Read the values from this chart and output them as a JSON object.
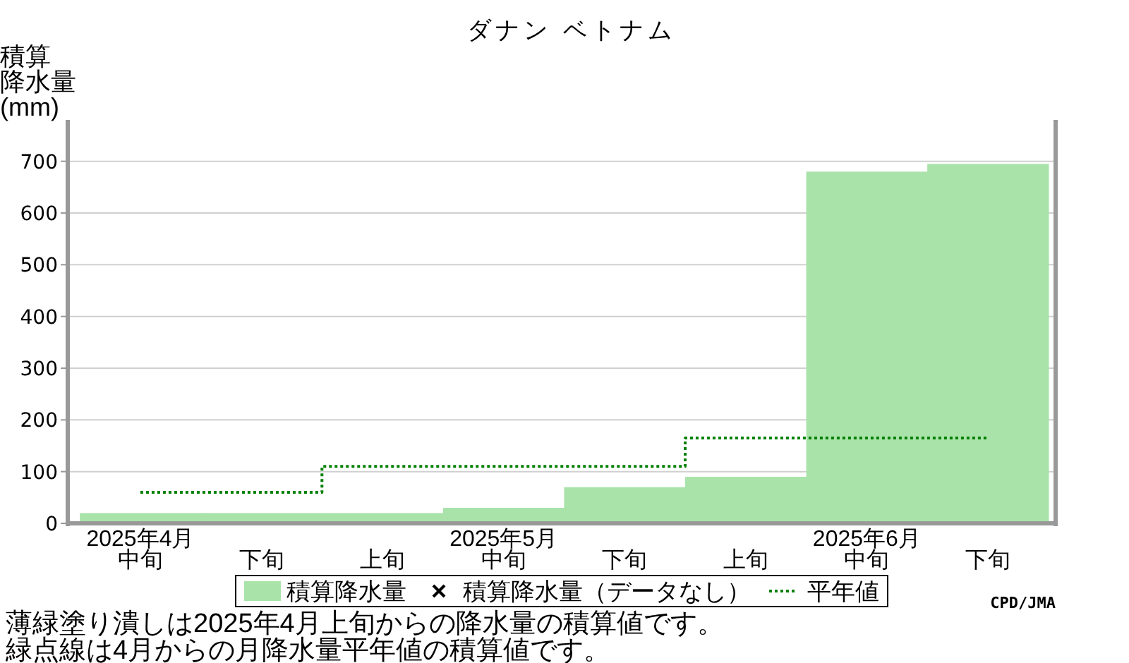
{
  "chart_data": {
    "type": "bar",
    "title": "ダナン ベトナム",
    "ylabel": "積算降水量(mm)",
    "categories": [
      "2025年4月中旬",
      "下旬",
      "上旬",
      "2025年5月中旬",
      "下旬",
      "上旬",
      "2025年6月中旬",
      "下旬"
    ],
    "series": [
      {
        "name": "積算降水量",
        "color": "#aae3aa",
        "values": [
          20,
          20,
          20,
          30,
          70,
          90,
          680,
          695
        ]
      },
      {
        "name": "積算降水量（データなし）",
        "type": "scatter",
        "marker": "cross",
        "color": "#000000",
        "values": [
          null,
          null,
          null,
          null,
          null,
          null,
          null,
          null
        ]
      },
      {
        "name": "平年値",
        "type": "step",
        "line_style": "dotted",
        "color": "#008000",
        "values": [
          60,
          60,
          110,
          110,
          110,
          165,
          165,
          165
        ]
      }
    ],
    "ylim": [
      0,
      780
    ],
    "yticks": [
      0,
      100,
      200,
      300,
      400,
      500,
      600,
      700
    ],
    "grid": "y",
    "legend": "bottom",
    "annotations": [
      "CPD/JMA",
      "薄緑塗り潰しは2025年4月上旬からの降水量の積算値です。",
      "緑点線は4月からの月降水量平年値の積算値です。"
    ]
  }
}
